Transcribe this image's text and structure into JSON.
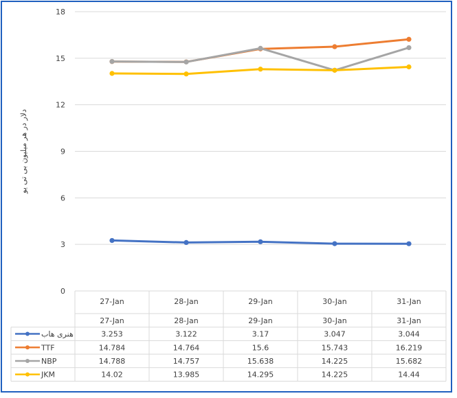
{
  "chart_data": {
    "type": "line",
    "categories": [
      "27-Jan",
      "28-Jan",
      "29-Jan",
      "30-Jan",
      "31-Jan"
    ],
    "ylabel": "دلار در هر میلیون بی تی یو",
    "ylim": [
      0,
      18
    ],
    "yticks": [
      0,
      3,
      6,
      9,
      12,
      15,
      18
    ],
    "grid": true,
    "legend": "data-table",
    "series": [
      {
        "name": "هنری هاب",
        "color": "#4472c4",
        "values": [
          3.253,
          3.122,
          3.17,
          3.047,
          3.044
        ],
        "labels": [
          "3.253",
          "3.122",
          "3.17",
          "3.047",
          "3.044"
        ]
      },
      {
        "name": "TTF",
        "color": "#ed7d31",
        "values": [
          14.784,
          14.764,
          15.6,
          15.743,
          16.219
        ],
        "labels": [
          "14.784",
          "14.764",
          "15.6",
          "15.743",
          "16.219"
        ]
      },
      {
        "name": "NBP",
        "color": "#a5a5a5",
        "values": [
          14.788,
          14.757,
          15.638,
          14.225,
          15.682
        ],
        "labels": [
          "14.788",
          "14.757",
          "15.638",
          "14.225",
          "15.682"
        ]
      },
      {
        "name": "JKM",
        "color": "#ffc000",
        "values": [
          14.02,
          13.985,
          14.295,
          14.225,
          14.44
        ],
        "labels": [
          "14.02",
          "13.985",
          "14.295",
          "14.225",
          "14.44"
        ]
      }
    ]
  }
}
